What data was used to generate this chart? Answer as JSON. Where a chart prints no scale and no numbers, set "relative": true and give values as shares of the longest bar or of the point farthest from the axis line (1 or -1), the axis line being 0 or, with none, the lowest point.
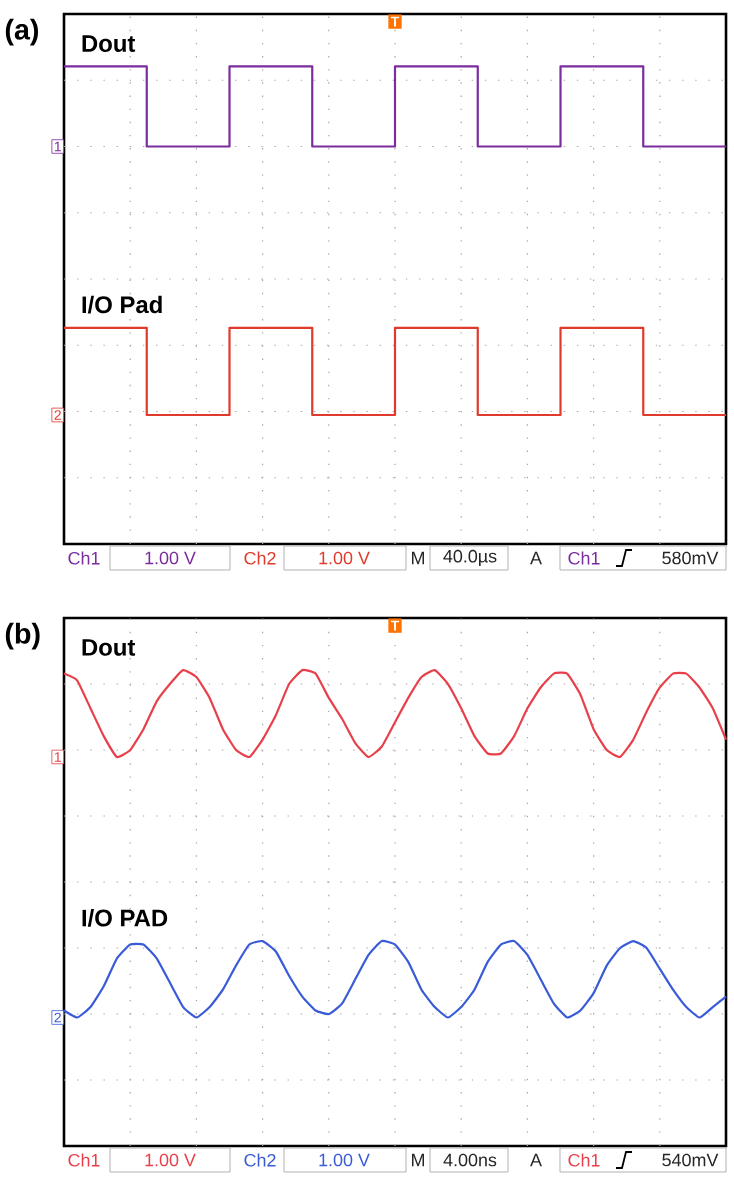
{
  "chart_data": [
    {
      "type": "step",
      "title": "(a)",
      "relative": true,
      "grid": true,
      "categories": [
        null,
        null,
        null,
        null,
        null,
        null,
        null,
        null,
        null,
        null,
        null,
        null,
        null,
        null,
        null,
        null,
        null,
        null,
        null,
        null,
        null,
        null,
        null,
        null,
        null,
        null,
        null,
        null,
        null,
        null,
        null,
        null,
        null,
        null,
        null,
        null,
        null,
        null,
        null,
        null,
        null
      ],
      "series": [
        {
          "name": "Dout",
          "color": "#7b2d9e",
          "values": [
            1,
            1,
            1,
            1,
            1,
            0.77,
            0.77,
            0.77,
            0.77,
            0.77,
            1,
            1,
            1,
            1,
            1,
            0.77,
            0.77,
            0.77,
            0.77,
            0.77,
            1,
            1,
            1,
            1,
            1,
            0.77,
            0.77,
            0.77,
            0.77,
            0.77,
            1,
            1,
            1,
            1,
            1,
            0.77,
            0.77,
            0.77,
            0.77,
            0.77,
            0.77
          ]
        },
        {
          "name": "I/O Pad",
          "color": "#e03a2c",
          "values": [
            0.25,
            0.25,
            0.25,
            0.25,
            0.25,
            0,
            0,
            0,
            0,
            0,
            0.25,
            0.25,
            0.25,
            0.25,
            0.25,
            0,
            0,
            0,
            0,
            0,
            0.25,
            0.25,
            0.25,
            0.25,
            0.25,
            0,
            0,
            0,
            0,
            0,
            0.25,
            0.25,
            0.25,
            0.25,
            0.25,
            0,
            0,
            0,
            0,
            0,
            0
          ]
        }
      ],
      "annotations": [
        "1",
        "2",
        "T",
        "Ch1",
        "1.00 V",
        "Ch2",
        "1.00 V",
        "M",
        "40.0µs",
        "A",
        "Ch1",
        "580mV"
      ]
    },
    {
      "type": "line",
      "title": "(b)",
      "relative": true,
      "grid": true,
      "categories": [
        null,
        null,
        null,
        null,
        null,
        null,
        null,
        null,
        null,
        null,
        null,
        null,
        null,
        null,
        null,
        null,
        null,
        null,
        null,
        null,
        null,
        null,
        null,
        null,
        null,
        null,
        null,
        null,
        null,
        null,
        null,
        null,
        null,
        null,
        null,
        null,
        null,
        null,
        null,
        null,
        null,
        null,
        null,
        null,
        null,
        null,
        null,
        null,
        null,
        null,
        null
      ],
      "series": [
        {
          "name": "Dout",
          "color": "#e8404a",
          "values": [
            0.99,
            0.97,
            0.89,
            0.81,
            0.75,
            0.77,
            0.83,
            0.91,
            0.96,
            1,
            0.98,
            0.92,
            0.83,
            0.77,
            0.75,
            0.8,
            0.87,
            0.96,
            1,
            0.99,
            0.92,
            0.86,
            0.79,
            0.75,
            0.78,
            0.85,
            0.92,
            0.98,
            1,
            0.96,
            0.89,
            0.81,
            0.76,
            0.76,
            0.81,
            0.89,
            0.95,
            0.99,
            0.99,
            0.93,
            0.83,
            0.77,
            0.75,
            0.8,
            0.88,
            0.95,
            0.99,
            0.99,
            0.95,
            0.89,
            0.8
          ]
        },
        {
          "name": "I/O PAD",
          "color": "#3a5bd8",
          "values": [
            0.02,
            0,
            0.03,
            0.09,
            0.17,
            0.21,
            0.21,
            0.17,
            0.1,
            0.03,
            0,
            0.03,
            0.08,
            0.15,
            0.21,
            0.22,
            0.19,
            0.12,
            0.06,
            0.02,
            0.01,
            0.04,
            0.11,
            0.18,
            0.22,
            0.21,
            0.16,
            0.08,
            0.03,
            0,
            0.03,
            0.08,
            0.16,
            0.21,
            0.22,
            0.18,
            0.11,
            0.04,
            0,
            0.02,
            0.07,
            0.15,
            0.2,
            0.22,
            0.2,
            0.14,
            0.08,
            0.03,
            0,
            0.03,
            0.06
          ]
        }
      ],
      "annotations": [
        "1",
        "2",
        "T",
        "Ch1",
        "1.00 V",
        "Ch2",
        "1.00 V",
        "M",
        "4.00ns",
        "A",
        "Ch1",
        "540mV"
      ]
    }
  ]
}
